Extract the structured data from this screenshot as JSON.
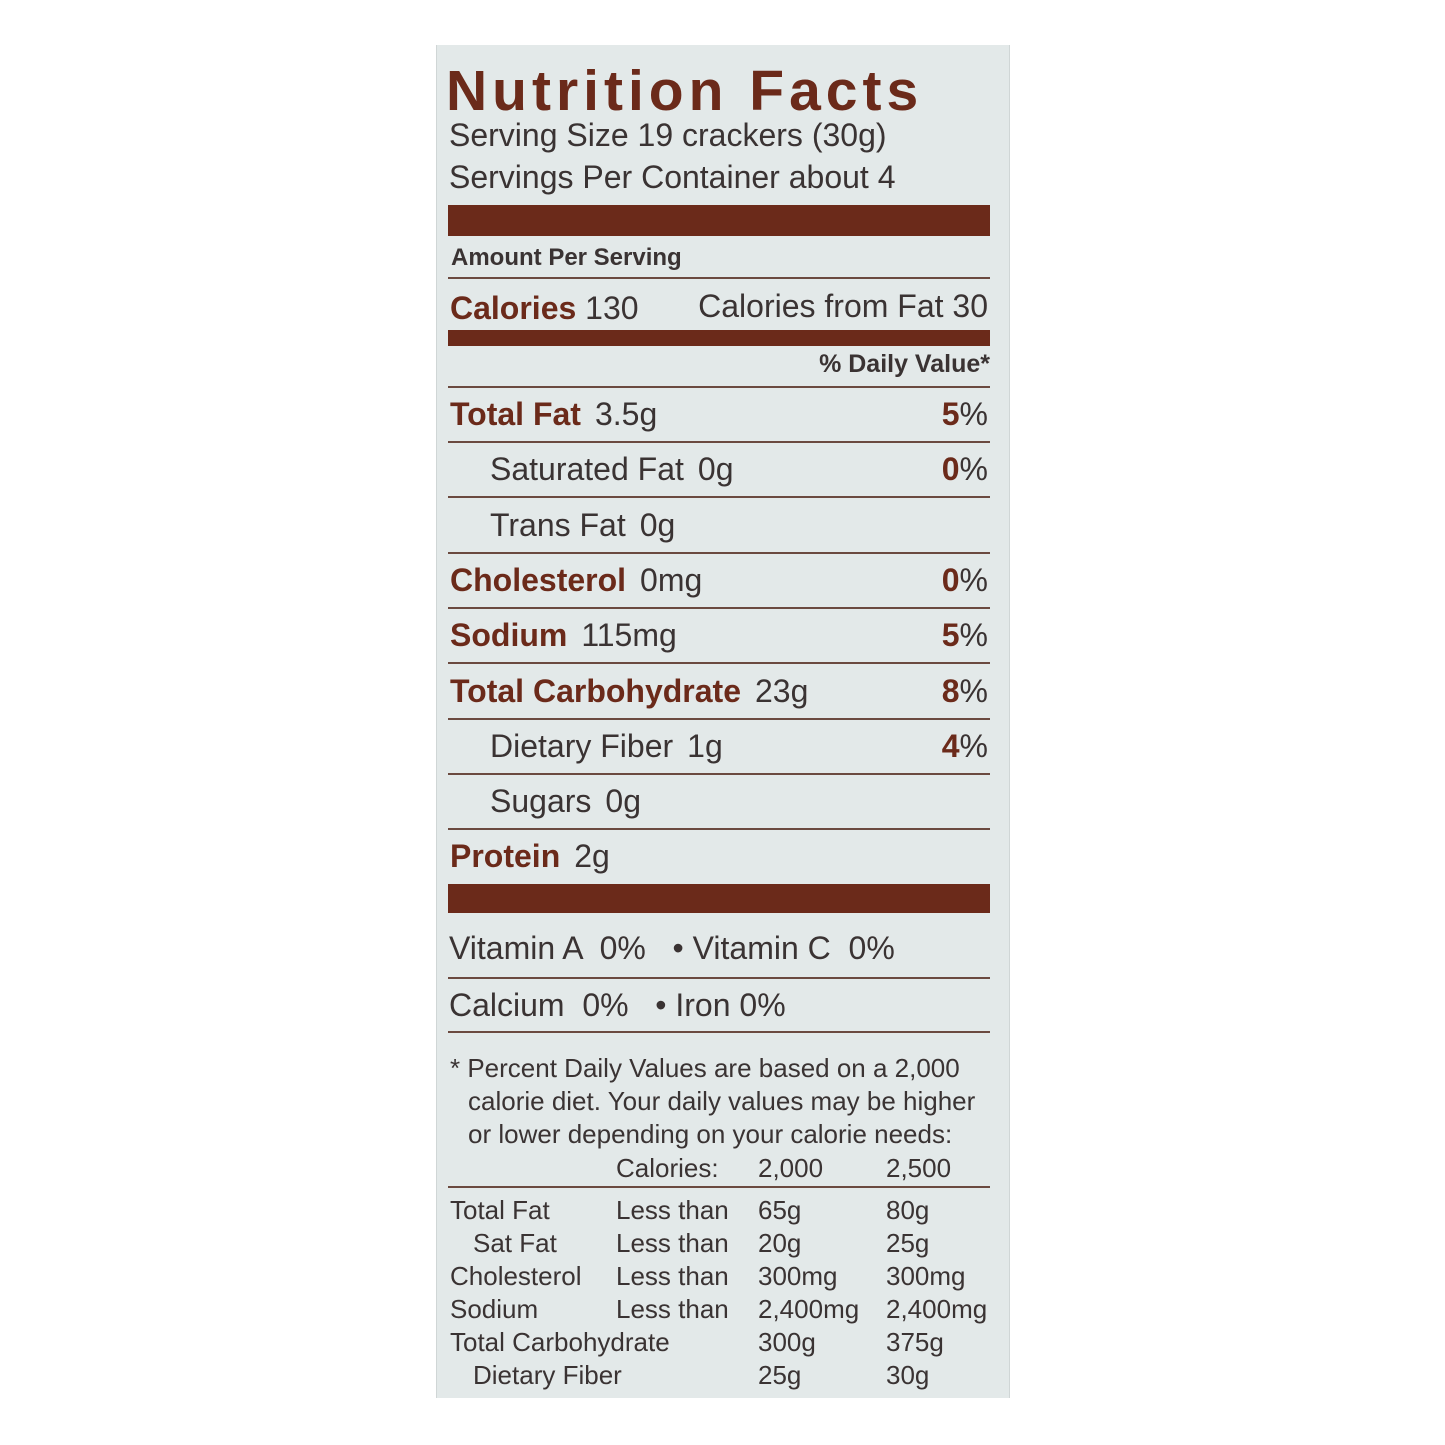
{
  "label": {
    "title": "Nutrition Facts",
    "serving_size": "Serving Size  19 crackers (30g)",
    "servings_per_container": "Servings Per Container about 4",
    "amount_per_serving": "Amount Per Serving",
    "calories_label": "Calories",
    "calories_value": "130",
    "calories_from_fat": "Calories from Fat 30",
    "daily_value_header": "% Daily Value*",
    "nutrients": [
      {
        "name": "Total Fat",
        "amount": "3.5g",
        "pct": "5",
        "indent": false
      },
      {
        "name": "Saturated Fat",
        "amount": "0g",
        "pct": "0",
        "indent": true
      },
      {
        "name": "Trans Fat",
        "amount": "0g",
        "pct": "",
        "indent": true
      },
      {
        "name": "Cholesterol",
        "amount": "0mg",
        "pct": "0",
        "indent": false
      },
      {
        "name": "Sodium",
        "amount": "115mg",
        "pct": "5",
        "indent": false
      },
      {
        "name": "Total Carbohydrate",
        "amount": "23g",
        "pct": "8",
        "indent": false
      },
      {
        "name": "Dietary Fiber",
        "amount": "1g",
        "pct": "4",
        "indent": true
      },
      {
        "name": "Sugars",
        "amount": "0g",
        "pct": "",
        "indent": true
      },
      {
        "name": "Protein",
        "amount": "2g",
        "pct": "",
        "indent": false
      }
    ],
    "vitamins_line1": "Vitamin A  0%   • Vitamin C  0%",
    "vitamins_line2": "Calcium  0%   • Iron 0%",
    "footnote": [
      "* Percent Daily Values are based on a 2,000",
      "calorie diet. Your daily values may be higher",
      "or lower depending on your calorie needs:"
    ],
    "dv_table": {
      "header": [
        "Calories:",
        "2,000",
        "2,500"
      ],
      "rows": [
        {
          "name": "Total Fat",
          "qual": "Less than",
          "v1": "65g",
          "v2": "80g",
          "indent": false
        },
        {
          "name": "Sat Fat",
          "qual": "Less than",
          "v1": "20g",
          "v2": "25g",
          "indent": true
        },
        {
          "name": "Cholesterol",
          "qual": "Less than",
          "v1": "300mg",
          "v2": "300mg",
          "indent": false
        },
        {
          "name": "Sodium",
          "qual": "Less than",
          "v1": "2,400mg",
          "v2": "2,400mg",
          "indent": false
        },
        {
          "name": "Total Carbohydrate",
          "qual": "",
          "v1": "300g",
          "v2": "375g",
          "indent": false
        },
        {
          "name": "Dietary Fiber",
          "qual": "",
          "v1": "25g",
          "v2": "30g",
          "indent": true
        }
      ]
    },
    "colors": {
      "brand": "#6b2a1a",
      "background": "#e3e9e9",
      "text": "#3a3333"
    }
  }
}
